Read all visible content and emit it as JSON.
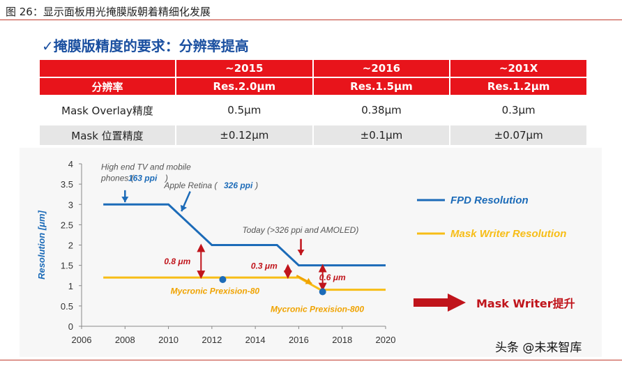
{
  "figure_title": "图 26：显示面板用光掩膜版朝着精细化发展",
  "subtitle": "✓掩膜版精度的要求：分辨率提高",
  "table": {
    "headers": [
      "",
      "~2015",
      "~2016",
      "~201X"
    ],
    "rows": [
      [
        "分辨率",
        "Res.2.0μm",
        "Res.1.5μm",
        "Res.1.2μm"
      ],
      [
        "Mask Overlay精度",
        "0.5μm",
        "0.38μm",
        "0.3μm"
      ],
      [
        "Mask 位置精度",
        "±0.12μm",
        "±0.1μm",
        "±0.07μm"
      ]
    ]
  },
  "chart_data": {
    "type": "line",
    "ylabel": "Resolution [μm]",
    "xlabel": "",
    "xlim": [
      2006,
      2020
    ],
    "ylim": [
      0,
      4
    ],
    "x_ticks": [
      2006,
      2008,
      2010,
      2012,
      2014,
      2016,
      2018,
      2020
    ],
    "y_ticks": [
      "0",
      "0.5",
      "1",
      "1.5",
      "2",
      "2.5",
      "3",
      "3.5",
      "4"
    ],
    "series": [
      {
        "name": "FPD Resolution",
        "color": "#1c6bb8",
        "points": [
          [
            2007,
            3.0
          ],
          [
            2010,
            3.0
          ],
          [
            2012,
            2.0
          ],
          [
            2015,
            2.0
          ],
          [
            2016,
            1.5
          ],
          [
            2020,
            1.5
          ]
        ]
      },
      {
        "name": "Mask Writer Resolution",
        "color": "#f7bd16",
        "points": [
          [
            2007,
            1.2
          ],
          [
            2016,
            1.2
          ],
          [
            2017,
            0.9
          ],
          [
            2020,
            0.9
          ]
        ]
      }
    ],
    "markers": [
      {
        "x": 2012.5,
        "y": 1.15,
        "color": "#1c6bb8"
      },
      {
        "x": 2017.1,
        "y": 0.85,
        "color": "#1c6bb8"
      }
    ],
    "gaps": [
      {
        "label": "0.8 μm",
        "x": 2011.5,
        "y_top": 2.0,
        "y_bottom": 1.2
      },
      {
        "label": "0.3 μm",
        "x": 2015.5,
        "y_top": 1.5,
        "y_bottom": 1.2
      },
      {
        "label": "0.6 μm",
        "x": 2017.1,
        "y_top": 1.5,
        "y_bottom": 0.9
      }
    ],
    "annotations": [
      {
        "id": "hiend-line1",
        "text": "High end TV and mobile",
        "color": "#555555",
        "x": 2006.9,
        "y": 3.85
      },
      {
        "id": "hiend-line2a",
        "text": "phones (",
        "color": "#555555",
        "x": 2006.9,
        "y": 3.58
      },
      {
        "id": "hiend-ppi",
        "text": "163 ppi",
        "color": "#1c6bb8",
        "x": 2008.15,
        "y": 3.58
      },
      {
        "id": "hiend-close",
        "text": ")",
        "color": "#555555",
        "x": 2009.85,
        "y": 3.58
      },
      {
        "id": "retina-a",
        "text": "Apple Retina (",
        "color": "#555555",
        "x": 2009.8,
        "y": 3.4
      },
      {
        "id": "retina-ppi",
        "text": "326 ppi",
        "color": "#1c6bb8",
        "x": 2012.55,
        "y": 3.4
      },
      {
        "id": "retina-close",
        "text": ")",
        "color": "#555555",
        "x": 2014.0,
        "y": 3.4
      },
      {
        "id": "today",
        "text": "Today (>326 ppi and AMOLED)",
        "color": "#555555",
        "x": 2013.4,
        "y": 2.3
      },
      {
        "id": "mycronic-80",
        "text": "Mycronic Prexision-80",
        "color": "#f0a300",
        "x": 2010.1,
        "y": 0.8
      },
      {
        "id": "mycronic-800",
        "text": "Mycronic Prexision-800",
        "color": "#f0a300",
        "x": 2014.7,
        "y": 0.35
      }
    ],
    "legend": [
      "FPD Resolution",
      "Mask Writer Resolution"
    ],
    "legend_position": "right"
  },
  "callout": {
    "label": "Mask Writer提升",
    "color": "#c0141b"
  },
  "watermark": "头条 @未来智库"
}
